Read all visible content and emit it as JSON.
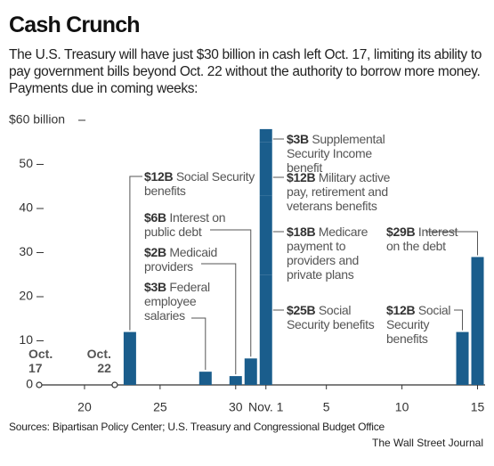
{
  "title": "Cash Crunch",
  "subtitle": "The U.S. Treasury will have just $30 billion in cash left Oct. 17, limiting its ability to pay government bills beyond Oct. 22 without the authority to borrow more money. Payments due in coming weeks:",
  "source": "Sources: Bipartisan Policy Center; U.S. Treasury and Congressional Budget Office",
  "credit": "The Wall Street Journal",
  "chart_data": {
    "type": "bar",
    "color": "#1a5d8c",
    "ylim": [
      0,
      60
    ],
    "yticks": [
      0,
      10,
      20,
      30,
      40,
      50,
      {
        "value": 60,
        "label": "$60 billion"
      }
    ],
    "xlim": [
      17,
      46.5
    ],
    "xticks": [
      20,
      25,
      30,
      {
        "value": 32,
        "label": "Nov. 1"
      },
      {
        "value": 36,
        "label": "5"
      },
      {
        "value": 41,
        "label": "10"
      },
      {
        "value": 46,
        "label": "15"
      }
    ],
    "markers": [
      {
        "x": 17,
        "label": "Oct. 17"
      },
      {
        "x": 22,
        "label": "Oct. 22"
      }
    ],
    "bars": [
      {
        "x": 23,
        "value": 12,
        "value_label": "$12B",
        "note": "Social Security benefits"
      },
      {
        "x": 28,
        "value": 3,
        "value_label": "$3B",
        "note": "Federal employee salaries"
      },
      {
        "x": 30,
        "value": 2,
        "value_label": "$2B",
        "note": "Medicaid providers"
      },
      {
        "x": 31,
        "value": 6,
        "value_label": "$6B",
        "note": "Interest on public debt"
      },
      {
        "x": 32,
        "value": 25,
        "value_label": "$25B",
        "note": "Social Security benefits"
      },
      {
        "x": 32,
        "value": 18,
        "value_label": "$18B",
        "note": "Medicare payment to providers and private plans"
      },
      {
        "x": 32,
        "value": 12,
        "value_label": "$12B",
        "note": "Military active pay, retirement and veterans benefits"
      },
      {
        "x": 32,
        "value": 3,
        "value_label": "$3B",
        "note": "Supplemental Security Income benefit"
      },
      {
        "x": 45,
        "value": 12,
        "value_label": "$12B",
        "note": "Social Security benefits"
      },
      {
        "x": 46,
        "value": 29,
        "value_label": "$29B",
        "note": "Interest on the debt"
      }
    ]
  }
}
